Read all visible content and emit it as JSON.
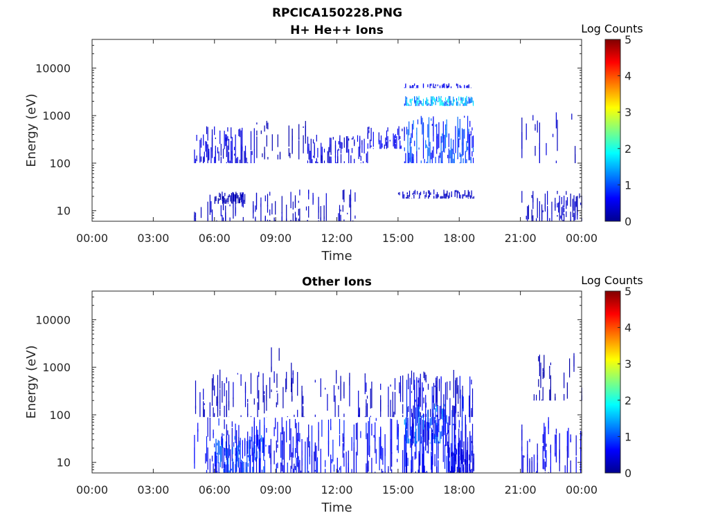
{
  "figure_title": "RPCICA150228.PNG",
  "colormap": [
    "#00008f",
    "#0000ff",
    "#0080ff",
    "#00ffff",
    "#80ff80",
    "#ffff00",
    "#ff8000",
    "#ff0000",
    "#800000"
  ],
  "chart_data": [
    {
      "type": "heatmap",
      "title": "H+ He++ Ions",
      "xlabel": "Time",
      "ylabel": "Energy (eV)",
      "x_ticks": [
        "00:00",
        "03:00",
        "06:00",
        "09:00",
        "12:00",
        "15:00",
        "18:00",
        "21:00",
        "00:00"
      ],
      "x_range_hours": [
        0,
        24
      ],
      "y_scale": "log",
      "y_range": [
        6,
        40000
      ],
      "y_ticks": [
        {
          "value": 10,
          "label": "10"
        },
        {
          "value": 100,
          "label": "100"
        },
        {
          "value": 1000,
          "label": "1000"
        },
        {
          "value": 10000,
          "label": "10000"
        }
      ],
      "colorbar": {
        "label": "Log Counts",
        "min": 0,
        "max": 5,
        "ticks": [
          "0",
          "1",
          "2",
          "3",
          "4",
          "5"
        ]
      },
      "regions": [
        {
          "t0": 5.0,
          "t1": 8.0,
          "e0": 100,
          "e1": 600,
          "level": 0.4,
          "density": 0.75
        },
        {
          "t0": 8.0,
          "t1": 10.5,
          "e0": 120,
          "e1": 800,
          "level": 0.2,
          "density": 0.35
        },
        {
          "t0": 10.5,
          "t1": 13.5,
          "e0": 100,
          "e1": 400,
          "level": 0.4,
          "density": 0.7
        },
        {
          "t0": 13.5,
          "t1": 15.3,
          "e0": 200,
          "e1": 600,
          "level": 0.5,
          "density": 0.7
        },
        {
          "t0": 15.3,
          "t1": 18.7,
          "e0": 100,
          "e1": 1000,
          "level": 0.9,
          "density": 0.9
        },
        {
          "t0": 15.3,
          "t1": 18.7,
          "e0": 1600,
          "e1": 2600,
          "level": 1.4,
          "density": 0.95
        },
        {
          "t0": 15.3,
          "t1": 18.7,
          "e0": 3800,
          "e1": 4800,
          "level": 0.5,
          "density": 0.7
        },
        {
          "t0": 5.0,
          "t1": 13.0,
          "e0": 6,
          "e1": 28,
          "level": 0.3,
          "density": 0.4
        },
        {
          "t0": 6.0,
          "t1": 7.5,
          "e0": 14,
          "e1": 25,
          "level": 0.2,
          "density": 0.95
        },
        {
          "t0": 15.0,
          "t1": 18.7,
          "e0": 18,
          "e1": 28,
          "level": 0.3,
          "density": 0.8
        },
        {
          "t0": 21.0,
          "t1": 24.0,
          "e0": 6,
          "e1": 28,
          "level": 0.3,
          "density": 0.5
        },
        {
          "t0": 21.0,
          "t1": 24.0,
          "e0": 100,
          "e1": 1200,
          "level": 0.3,
          "density": 0.15
        }
      ]
    },
    {
      "type": "heatmap",
      "title": "Other Ions",
      "xlabel": "Time",
      "ylabel": "Energy (eV)",
      "x_ticks": [
        "00:00",
        "03:00",
        "06:00",
        "09:00",
        "12:00",
        "15:00",
        "18:00",
        "21:00",
        "00:00"
      ],
      "x_range_hours": [
        0,
        24
      ],
      "y_scale": "log",
      "y_range": [
        6,
        40000
      ],
      "y_ticks": [
        {
          "value": 10,
          "label": "10"
        },
        {
          "value": 100,
          "label": "100"
        },
        {
          "value": 1000,
          "label": "1000"
        },
        {
          "value": 10000,
          "label": "10000"
        }
      ],
      "colorbar": {
        "label": "Log Counts",
        "min": 0,
        "max": 5,
        "ticks": [
          "0",
          "1",
          "2",
          "3",
          "4",
          "5"
        ]
      },
      "regions": [
        {
          "t0": 5.0,
          "t1": 18.7,
          "e0": 6,
          "e1": 90,
          "level": 0.6,
          "density": 0.55
        },
        {
          "t0": 5.0,
          "t1": 18.7,
          "e0": 90,
          "e1": 900,
          "level": 0.3,
          "density": 0.35
        },
        {
          "t0": 8.5,
          "t1": 10.0,
          "e0": 300,
          "e1": 2800,
          "level": 0.2,
          "density": 0.3
        },
        {
          "t0": 6.0,
          "t1": 8.5,
          "e0": 6,
          "e1": 40,
          "level": 0.9,
          "density": 0.95
        },
        {
          "t0": 15.3,
          "t1": 17.5,
          "e0": 25,
          "e1": 180,
          "level": 1.1,
          "density": 0.95
        },
        {
          "t0": 15.3,
          "t1": 18.7,
          "e0": 6,
          "e1": 700,
          "level": 0.6,
          "density": 0.7
        },
        {
          "t0": 17.5,
          "t1": 18.7,
          "e0": 6,
          "e1": 30,
          "level": 0.4,
          "density": 0.85
        },
        {
          "t0": 21.0,
          "t1": 24.0,
          "e0": 6,
          "e1": 90,
          "level": 0.5,
          "density": 0.5
        },
        {
          "t0": 21.0,
          "t1": 24.0,
          "e0": 200,
          "e1": 2000,
          "level": 0.2,
          "density": 0.2
        }
      ]
    }
  ]
}
